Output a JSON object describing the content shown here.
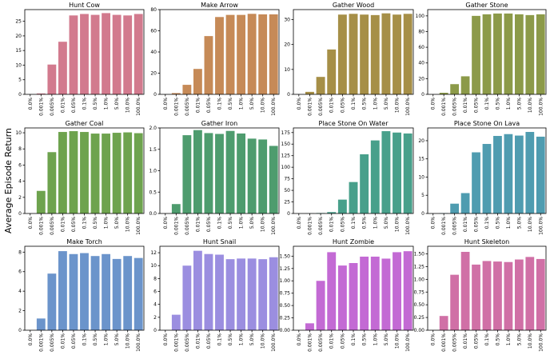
{
  "figure": {
    "ylabel": "Average Episode Return"
  },
  "chart_data": [
    {
      "type": "bar",
      "title": "Hunt Cow",
      "categories": [
        "0.0%",
        "0.001%",
        "0.005%",
        "0.01%",
        "0.05%",
        "0.1%",
        "0.5%",
        "1.0%",
        "5.0%",
        "10.0%",
        "100.0%"
      ],
      "values": [
        0,
        0.3,
        10.2,
        18,
        27,
        27.5,
        27.2,
        27.8,
        27.2,
        27,
        27.5
      ],
      "ylim": [
        0,
        29
      ],
      "yticks": [
        0,
        5,
        10,
        15,
        20,
        25
      ],
      "ytick_labels": [
        "0",
        "5",
        "10",
        "15",
        "20",
        "25"
      ],
      "color": "#d27a8e"
    },
    {
      "type": "bar",
      "title": "Make Arrow",
      "categories": [
        "0.0%",
        "0.001%",
        "0.005%",
        "0.01%",
        "0.05%",
        "0.1%",
        "0.5%",
        "1.0%",
        "5.0%",
        "10.0%",
        "100.0%"
      ],
      "values": [
        0,
        1.2,
        9,
        24,
        55,
        73,
        75,
        75,
        76,
        75.5,
        75.5
      ],
      "ylim": [
        0,
        80
      ],
      "yticks": [
        0,
        20,
        40,
        60,
        80
      ],
      "ytick_labels": [
        "0",
        "20",
        "40",
        "60",
        "80"
      ],
      "color": "#c68a57"
    },
    {
      "type": "bar",
      "title": "Gather Wood",
      "categories": [
        "0.0%",
        "0.001%",
        "0.005%",
        "0.01%",
        "0.05%",
        "0.1%",
        "0.5%",
        "1.0%",
        "5.0%",
        "10.0%",
        "100.0%"
      ],
      "values": [
        0,
        1,
        7,
        18,
        32,
        32.3,
        32,
        31.8,
        32.5,
        32,
        32.3
      ],
      "ylim": [
        0,
        34
      ],
      "yticks": [
        0,
        10,
        20,
        30
      ],
      "ytick_labels": [
        "0",
        "10",
        "20",
        "30"
      ],
      "color": "#a68f47"
    },
    {
      "type": "bar",
      "title": "Gather Stone",
      "categories": [
        "0.0%",
        "0.001%",
        "0.005%",
        "0.01%",
        "0.05%",
        "0.1%",
        "0.5%",
        "1.0%",
        "5.0%",
        "10.0%",
        "100.0%"
      ],
      "values": [
        0,
        2,
        13,
        23,
        100,
        102,
        103,
        103,
        102,
        101,
        102
      ],
      "ylim": [
        0,
        108
      ],
      "yticks": [
        0,
        20,
        40,
        60,
        80,
        100
      ],
      "ytick_labels": [
        "0",
        "20",
        "40",
        "60",
        "80",
        "100"
      ],
      "color": "#8c9a49"
    },
    {
      "type": "bar",
      "title": "Gather Coal",
      "categories": [
        "0.0%",
        "0.001%",
        "0.005%",
        "0.01%",
        "0.05%",
        "0.1%",
        "0.5%",
        "1.0%",
        "5.0%",
        "10.0%",
        "100.0%"
      ],
      "values": [
        0,
        2.8,
        7.6,
        10.1,
        10.2,
        10.1,
        9.9,
        9.9,
        10,
        10.05,
        9.95
      ],
      "ylim": [
        0,
        10.6
      ],
      "yticks": [
        0,
        2,
        4,
        6,
        8,
        10
      ],
      "ytick_labels": [
        "0",
        "2",
        "4",
        "6",
        "8",
        "10"
      ],
      "color": "#6ea34e"
    },
    {
      "type": "bar",
      "title": "Gather Iron",
      "categories": [
        "0.0%",
        "0.001%",
        "0.005%",
        "0.01%",
        "0.05%",
        "0.1%",
        "0.5%",
        "1.0%",
        "5.0%",
        "10.0%",
        "100.0%"
      ],
      "values": [
        0,
        0.22,
        1.83,
        1.95,
        1.88,
        1.86,
        1.93,
        1.87,
        1.75,
        1.73,
        1.58
      ],
      "ylim": [
        0,
        2.0
      ],
      "yticks": [
        0,
        0.5,
        1.0,
        1.5,
        2.0
      ],
      "ytick_labels": [
        "0.0",
        "0.5",
        "1.0",
        "1.5",
        "2.0"
      ],
      "color": "#4e9c6e"
    },
    {
      "type": "bar",
      "title": "Place Stone On Water",
      "categories": [
        "0.0%",
        "0.001%",
        "0.005%",
        "0.01%",
        "0.05%",
        "0.1%",
        "0.5%",
        "1.0%",
        "5.0%",
        "10.0%",
        "100.0%"
      ],
      "values": [
        0,
        0.3,
        1,
        3,
        30,
        68,
        128,
        158,
        178,
        175,
        173
      ],
      "ylim": [
        0,
        185
      ],
      "yticks": [
        0,
        25,
        50,
        75,
        100,
        125,
        150,
        175
      ],
      "ytick_labels": [
        "0",
        "25",
        "50",
        "75",
        "100",
        "125",
        "150",
        "175"
      ],
      "color": "#48a08b"
    },
    {
      "type": "bar",
      "title": "Place Stone On Lava",
      "categories": [
        "0.0%",
        "0.001%",
        "0.005%",
        "0.01%",
        "0.05%",
        "0.1%",
        "0.5%",
        "1.0%",
        "5.0%",
        "10.0%",
        "100.0%"
      ],
      "values": [
        0,
        0.1,
        2.7,
        5.6,
        16.8,
        19.1,
        21.3,
        21.8,
        21.4,
        22.4,
        21.1
      ],
      "ylim": [
        0,
        23.5
      ],
      "yticks": [
        0,
        5,
        10,
        15,
        20
      ],
      "ytick_labels": [
        "0",
        "5",
        "10",
        "15",
        "20"
      ],
      "color": "#4f9cb0"
    },
    {
      "type": "bar",
      "title": "Make Torch",
      "categories": [
        "0.0%",
        "0.001%",
        "0.005%",
        "0.01%",
        "0.05%",
        "0.1%",
        "0.5%",
        "1.0%",
        "5.0%",
        "10.0%",
        "100.0%"
      ],
      "values": [
        0,
        1.2,
        5.8,
        8.1,
        7.8,
        7.9,
        7.6,
        7.8,
        7.3,
        7.6,
        7.4
      ],
      "ylim": [
        0,
        8.6
      ],
      "yticks": [
        0,
        2,
        4,
        6,
        8
      ],
      "ytick_labels": [
        "0",
        "2",
        "4",
        "6",
        "8"
      ],
      "color": "#6b94cb"
    },
    {
      "type": "bar",
      "title": "Hunt Snail",
      "categories": [
        "0.0%",
        "0.001%",
        "0.005%",
        "0.01%",
        "0.05%",
        "0.1%",
        "0.5%",
        "1.0%",
        "5.0%",
        "10.0%",
        "100.0%"
      ],
      "values": [
        0,
        2.4,
        10,
        12.3,
        11.8,
        11.7,
        11,
        11.1,
        11.1,
        11,
        11.3
      ],
      "ylim": [
        0,
        13
      ],
      "yticks": [
        0,
        2,
        4,
        6,
        8,
        10,
        12
      ],
      "ytick_labels": [
        "0",
        "2",
        "4",
        "6",
        "8",
        "10",
        "12"
      ],
      "color": "#9b8ee0"
    },
    {
      "type": "bar",
      "title": "Hunt Zombie",
      "categories": [
        "0.0%",
        "0.001%",
        "0.005%",
        "0.01%",
        "0.05%",
        "0.1%",
        "0.5%",
        "1.0%",
        "5.0%",
        "10.0%",
        "100.0%"
      ],
      "values": [
        0,
        0.14,
        1,
        1.58,
        1.31,
        1.36,
        1.49,
        1.49,
        1.45,
        1.58,
        1.6
      ],
      "ylim": [
        0,
        1.7
      ],
      "yticks": [
        0,
        0.25,
        0.5,
        0.75,
        1.0,
        1.25,
        1.5
      ],
      "ytick_labels": [
        "0.00",
        "0.25",
        "0.50",
        "0.75",
        "1.00",
        "1.25",
        "1.50"
      ],
      "color": "#c36ad4"
    },
    {
      "type": "bar",
      "title": "Hunt Skeleton",
      "categories": [
        "0.0%",
        "0.001%",
        "0.005%",
        "0.01%",
        "0.05%",
        "0.1%",
        "0.5%",
        "1.0%",
        "5.0%",
        "10.0%",
        "100.0%"
      ],
      "values": [
        0,
        0.28,
        1.09,
        1.54,
        1.29,
        1.36,
        1.35,
        1.34,
        1.39,
        1.44,
        1.4
      ],
      "ylim": [
        0,
        1.65
      ],
      "yticks": [
        0,
        0.25,
        0.5,
        0.75,
        1.0,
        1.25,
        1.5
      ],
      "ytick_labels": [
        "0.00",
        "0.25",
        "0.50",
        "0.75",
        "1.00",
        "1.25",
        "1.50"
      ],
      "color": "#d070a6"
    }
  ]
}
